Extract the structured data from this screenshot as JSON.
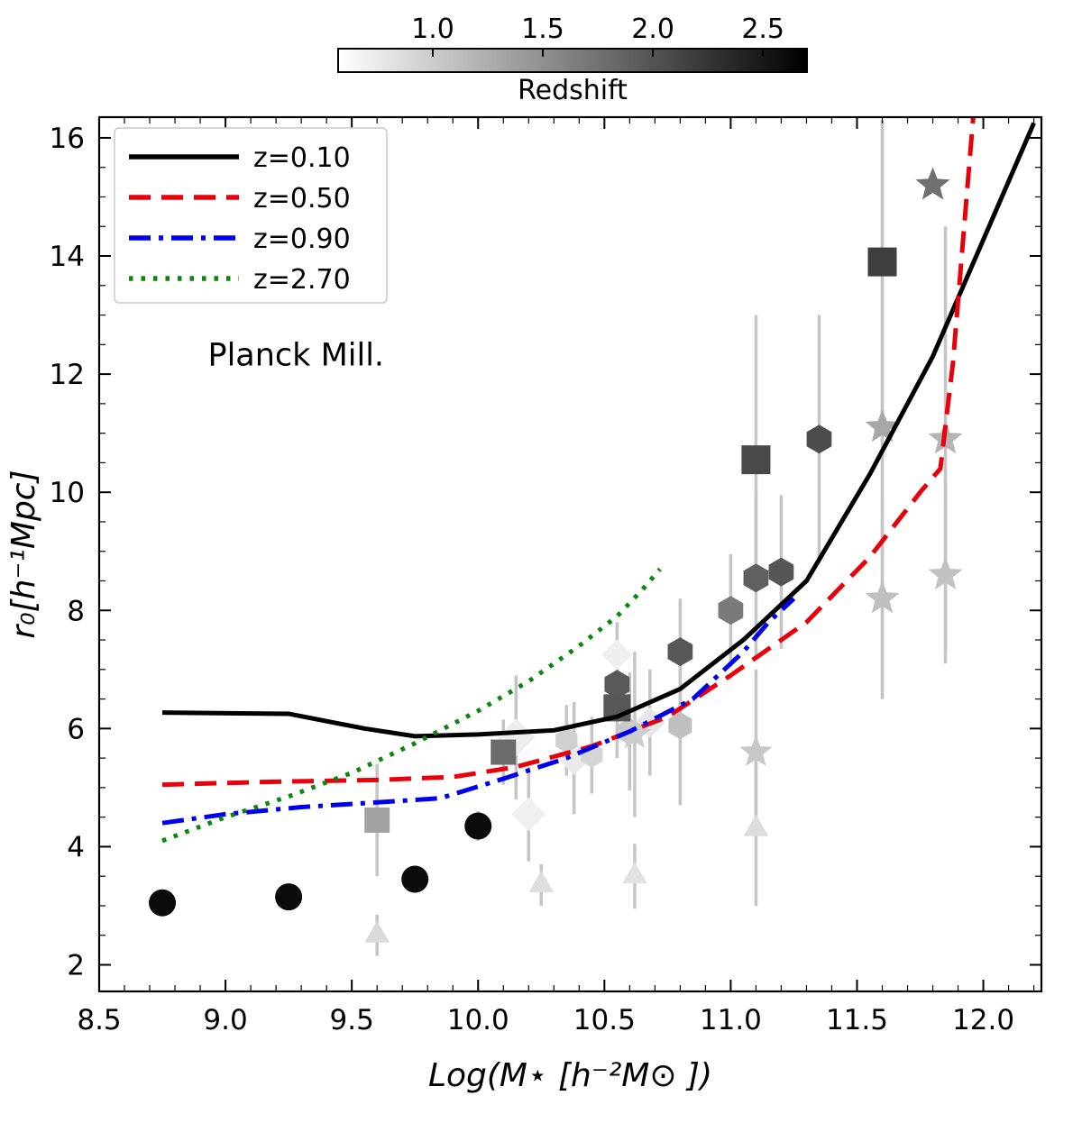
{
  "figure": {
    "background": "#ffffff"
  },
  "chart_data": {
    "type": "scatter",
    "title": "",
    "xlabel": "Log(M⋆ [h⁻²M⊙ ])",
    "ylabel": "r₀[h⁻¹Mpc]",
    "xlim": [
      8.5,
      12.23
    ],
    "ylim": [
      1.55,
      16.35
    ],
    "xticks": [
      8.5,
      9.0,
      9.5,
      10.0,
      10.5,
      11.0,
      11.5,
      12.0
    ],
    "yticks": [
      2,
      4,
      6,
      8,
      10,
      12,
      14,
      16
    ],
    "xminor_step": 0.1,
    "yminor_step": 0.5,
    "grid": false,
    "legend_position": "upper-left",
    "annotation": {
      "text": "Planck Mill.",
      "x": 8.93,
      "y": 12.15
    },
    "colorbar": {
      "label": "Redshift",
      "ticks": [
        1.0,
        1.5,
        2.0,
        2.5
      ],
      "vmin": 0.57,
      "vmax": 2.7,
      "gradient": [
        "#ffffff",
        "#000000"
      ]
    },
    "errorbar_color": "#c5c5c5",
    "lines": [
      {
        "label": "z=0.10",
        "color": "#000000",
        "style": "solid",
        "x": [
          8.75,
          9.25,
          9.55,
          9.75,
          10.0,
          10.3,
          10.55,
          10.8,
          11.05,
          11.3,
          11.55,
          11.8,
          12.2
        ],
        "y": [
          6.27,
          6.25,
          6.0,
          5.87,
          5.9,
          5.97,
          6.2,
          6.67,
          7.5,
          8.5,
          10.3,
          12.3,
          16.25
        ]
      },
      {
        "label": "z=0.50",
        "color": "#e8000b",
        "style": "dashed",
        "x": [
          8.75,
          9.2,
          9.6,
          9.9,
          10.15,
          10.45,
          10.75,
          11.0,
          11.3,
          11.55,
          11.75,
          11.83,
          11.88,
          11.93,
          11.96
        ],
        "y": [
          5.05,
          5.1,
          5.13,
          5.18,
          5.35,
          5.7,
          6.2,
          6.9,
          7.8,
          8.9,
          10.0,
          10.4,
          12.2,
          14.8,
          16.35
        ]
      },
      {
        "label": "z=0.90",
        "color": "#0000ee",
        "style": "dashdot",
        "x": [
          8.75,
          9.0,
          9.3,
          9.6,
          9.85,
          10.1,
          10.35,
          10.6,
          10.85,
          11.05,
          11.15,
          11.25
        ],
        "y": [
          4.4,
          4.55,
          4.67,
          4.75,
          4.82,
          5.15,
          5.5,
          5.95,
          6.5,
          7.3,
          7.8,
          8.2
        ]
      },
      {
        "label": "z=2.70",
        "color": "#0c860c",
        "style": "dotted",
        "x": [
          8.75,
          9.0,
          9.25,
          9.5,
          9.75,
          10.0,
          10.2,
          10.4,
          10.55,
          10.65,
          10.72
        ],
        "y": [
          4.1,
          4.5,
          4.85,
          5.25,
          5.75,
          6.3,
          6.8,
          7.4,
          7.9,
          8.35,
          8.7
        ]
      }
    ],
    "scatter": [
      {
        "marker": "triangle",
        "x": 9.6,
        "y": 2.5,
        "e": [
          0.35,
          0.35
        ],
        "color": "#dadada",
        "size": 16
      },
      {
        "marker": "triangle",
        "x": 10.25,
        "y": 3.35,
        "e": [
          0.35,
          0.35
        ],
        "color": "#dedede",
        "size": 16
      },
      {
        "marker": "triangle",
        "x": 10.62,
        "y": 3.5,
        "e": [
          0.55,
          0.55
        ],
        "color": "#e2e2e2",
        "size": 16
      },
      {
        "marker": "triangle",
        "x": 11.1,
        "y": 4.3,
        "e": [
          1.3,
          1.3
        ],
        "color": "#dcdcdc",
        "size": 16
      },
      {
        "marker": "diamond",
        "x": 10.15,
        "y": 5.85,
        "e": [
          1.05,
          1.05
        ],
        "color": "#ededed",
        "size": 21
      },
      {
        "marker": "diamond",
        "x": 10.2,
        "y": 4.55,
        "e": [
          0.8,
          0.8
        ],
        "color": "#f0f0f0",
        "size": 19
      },
      {
        "marker": "diamond",
        "x": 10.38,
        "y": 5.5,
        "e": [
          0.95,
          0.95
        ],
        "color": "#eaeaea",
        "size": 19
      },
      {
        "marker": "diamond",
        "x": 10.55,
        "y": 7.25,
        "e": [
          0.55,
          0.55
        ],
        "color": "#efefef",
        "size": 17
      },
      {
        "marker": "diamond",
        "x": 10.68,
        "y": 6.1,
        "e": [
          0.9,
          0.9
        ],
        "color": "#e7e7e7",
        "size": 17
      },
      {
        "marker": "hexagon",
        "x": 10.35,
        "y": 5.8,
        "e": [
          0.6,
          0.6
        ],
        "color": "#d0d0d0",
        "size": 14
      },
      {
        "marker": "hexagon",
        "x": 10.45,
        "y": 5.55,
        "e": [
          0.65,
          0.65
        ],
        "color": "#d5d5d5",
        "size": 14
      },
      {
        "marker": "hexagon",
        "x": 10.6,
        "y": 5.95,
        "e": [
          1.0,
          1.0
        ],
        "color": "#c9c9c9",
        "size": 15
      },
      {
        "marker": "hexagon",
        "x": 10.8,
        "y": 6.05,
        "e": [
          1.35,
          1.35
        ],
        "color": "#bfbfbf",
        "size": 15
      },
      {
        "marker": "star",
        "x": 10.62,
        "y": 5.9,
        "e": [
          1.4,
          1.4
        ],
        "color": "#cdcdcd",
        "size": 19
      },
      {
        "marker": "star",
        "x": 11.1,
        "y": 5.6,
        "e": [
          1.4,
          1.4
        ],
        "color": "#c7c7c7",
        "size": 19
      },
      {
        "marker": "star",
        "x": 11.6,
        "y": 8.2,
        "e": [
          1.7,
          1.7
        ],
        "color": "#bfbfbf",
        "size": 20
      },
      {
        "marker": "star",
        "x": 11.6,
        "y": 11.1,
        "e": [
          4.6,
          5.2
        ],
        "color": "#a8a8a8",
        "size": 20
      },
      {
        "marker": "star",
        "x": 11.85,
        "y": 8.6,
        "e": [
          1.5,
          1.6
        ],
        "color": "#c2c2c2",
        "size": 20
      },
      {
        "marker": "star",
        "x": 11.85,
        "y": 10.9,
        "e": [
          3.6,
          3.6
        ],
        "color": "#b4b4b4",
        "size": 20
      },
      {
        "marker": "square",
        "x": 9.6,
        "y": 4.45,
        "e": [
          0.95,
          0.95
        ],
        "color": "#a2a2a2",
        "size": 14
      },
      {
        "marker": "square",
        "x": 10.1,
        "y": 5.6,
        "e": [
          0.55,
          0.55
        ],
        "color": "#6b6b6b",
        "size": 14
      },
      {
        "marker": "square",
        "x": 10.55,
        "y": 6.35,
        "e": [
          0.85,
          0.85
        ],
        "color": "#575757",
        "size": 15
      },
      {
        "marker": "square",
        "x": 11.1,
        "y": 10.55,
        "e": [
          2.05,
          2.45
        ],
        "color": "#494949",
        "size": 16
      },
      {
        "marker": "square",
        "x": 11.6,
        "y": 13.9,
        "e": [
          2.9,
          2.4
        ],
        "color": "#3e3e3e",
        "size": 16
      },
      {
        "marker": "hexagon",
        "x": 10.55,
        "y": 6.75,
        "e": [
          0.8,
          0.8
        ],
        "color": "#595959",
        "size": 16
      },
      {
        "marker": "hexagon",
        "x": 10.8,
        "y": 7.3,
        "e": [
          0.9,
          0.9
        ],
        "color": "#575757",
        "size": 16
      },
      {
        "marker": "hexagon",
        "x": 11.0,
        "y": 8.0,
        "e": [
          0.95,
          0.95
        ],
        "color": "#7a7a7a",
        "size": 16
      },
      {
        "marker": "hexagon",
        "x": 11.1,
        "y": 8.55,
        "e": [
          1.35,
          1.45
        ],
        "color": "#606060",
        "size": 16
      },
      {
        "marker": "hexagon",
        "x": 11.2,
        "y": 8.65,
        "e": [
          1.3,
          1.3
        ],
        "color": "#565656",
        "size": 16
      },
      {
        "marker": "hexagon",
        "x": 11.35,
        "y": 10.9,
        "e": [
          2.1,
          2.1
        ],
        "color": "#4d4d4d",
        "size": 16
      },
      {
        "marker": "star",
        "x": 11.8,
        "y": 15.2,
        "e": [
          0,
          0
        ],
        "color": "#707070",
        "size": 20
      },
      {
        "marker": "circle",
        "x": 8.75,
        "y": 3.05,
        "e": [
          0.2,
          0.2
        ],
        "color": "#0b0b0b",
        "size": 15
      },
      {
        "marker": "circle",
        "x": 9.25,
        "y": 3.15,
        "e": [
          0.15,
          0.15
        ],
        "color": "#0b0b0b",
        "size": 15
      },
      {
        "marker": "circle",
        "x": 9.75,
        "y": 3.45,
        "e": [
          0.2,
          0.2
        ],
        "color": "#0b0b0b",
        "size": 15
      },
      {
        "marker": "circle",
        "x": 10.0,
        "y": 4.35,
        "e": [
          0.25,
          0.25
        ],
        "color": "#0b0b0b",
        "size": 15
      }
    ]
  }
}
